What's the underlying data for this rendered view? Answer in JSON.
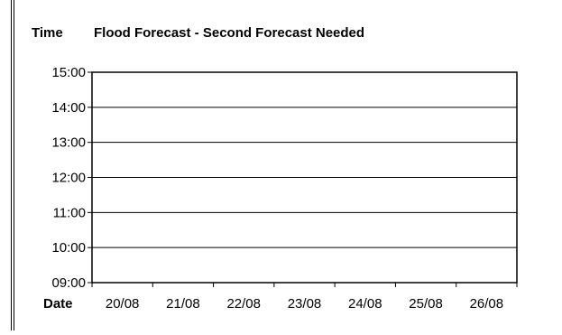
{
  "chart_data": {
    "type": "line",
    "title": "Flood Forecast - Second Forecast Needed",
    "ylabel": "Time",
    "xlabel": "Date",
    "categories": [
      "20/08",
      "21/08",
      "22/08",
      "23/08",
      "24/08",
      "25/08",
      "26/08"
    ],
    "y_ticks": [
      "09:00",
      "10:00",
      "11:00",
      "12:00",
      "13:00",
      "14:00",
      "15:00"
    ],
    "ylim": [
      "09:00",
      "15:00"
    ],
    "grid": true,
    "series": []
  }
}
